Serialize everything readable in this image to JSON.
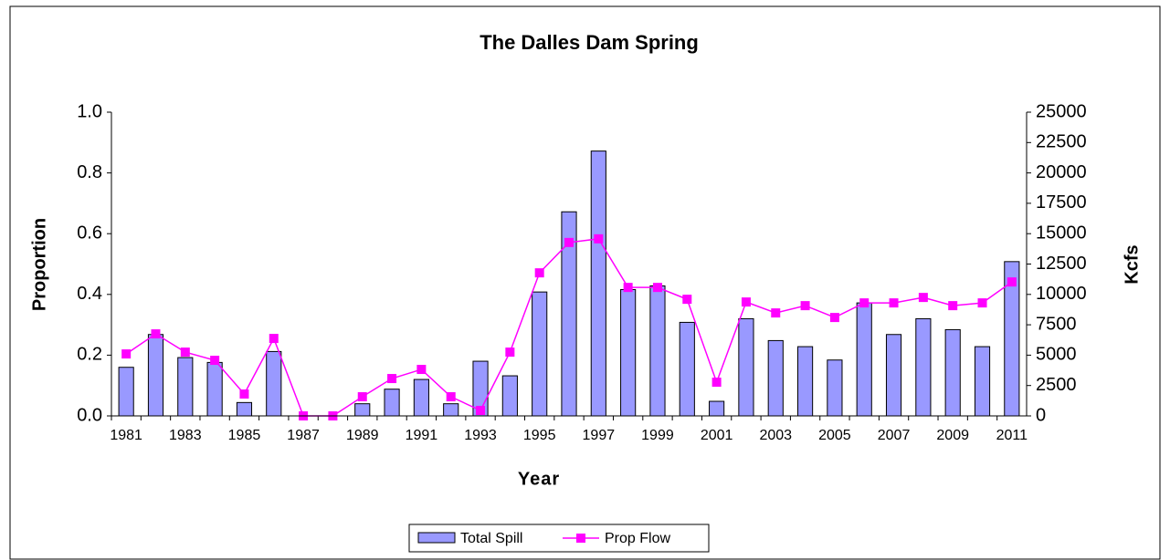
{
  "chart_data": {
    "type": "bar_line",
    "title": "The Dalles Dam Spring",
    "x_label": "Year",
    "y_label": "Proportion",
    "y2_label": "Kcfs",
    "categories": [
      1981,
      null,
      1983,
      null,
      1985,
      null,
      1987,
      null,
      1989,
      null,
      1991,
      null,
      1993,
      null,
      1995,
      null,
      1997,
      null,
      1999,
      null,
      2001,
      null,
      2003,
      null,
      2005,
      null,
      2007,
      null,
      2009,
      null,
      2011
    ],
    "ylim": [
      0,
      1
    ],
    "yticks": [
      {
        "value": 0,
        "label": "0.0"
      },
      0.2,
      0.4,
      0.6,
      0.8,
      {
        "value": 1,
        "label": "1.0"
      }
    ],
    "y2lim": [
      0,
      25000
    ],
    "y2ticks": [
      0,
      2500,
      5000,
      7500,
      10000,
      12500,
      15000,
      17500,
      20000,
      22500,
      25000
    ],
    "grid": false,
    "legend": "bottom",
    "series": [
      {
        "name": "Total Spill",
        "type": "bar",
        "axis": "y2",
        "color": "#9999ff",
        "values": [
          4000,
          6700,
          4800,
          4400,
          1100,
          5300,
          0,
          0,
          1000,
          2200,
          3000,
          1000,
          4500,
          3300,
          10200,
          16800,
          21800,
          10400,
          10700,
          7700,
          1200,
          8000,
          6200,
          5700,
          4600,
          9300,
          6700,
          8000,
          7100,
          5700,
          12700
        ]
      },
      {
        "name": "Prop Flow",
        "type": "line",
        "axis": "y",
        "color": "#ff00ff",
        "values": [
          0.204,
          0.27,
          0.21,
          0.183,
          0.072,
          0.255,
          0,
          0,
          0.063,
          0.123,
          0.153,
          0.063,
          0.018,
          0.21,
          0.471,
          0.571,
          0.583,
          0.423,
          0.423,
          0.384,
          0.111,
          0.375,
          0.339,
          0.363,
          0.324,
          0.372,
          0.372,
          0.39,
          0.363,
          0.372,
          0.441
        ]
      }
    ]
  }
}
